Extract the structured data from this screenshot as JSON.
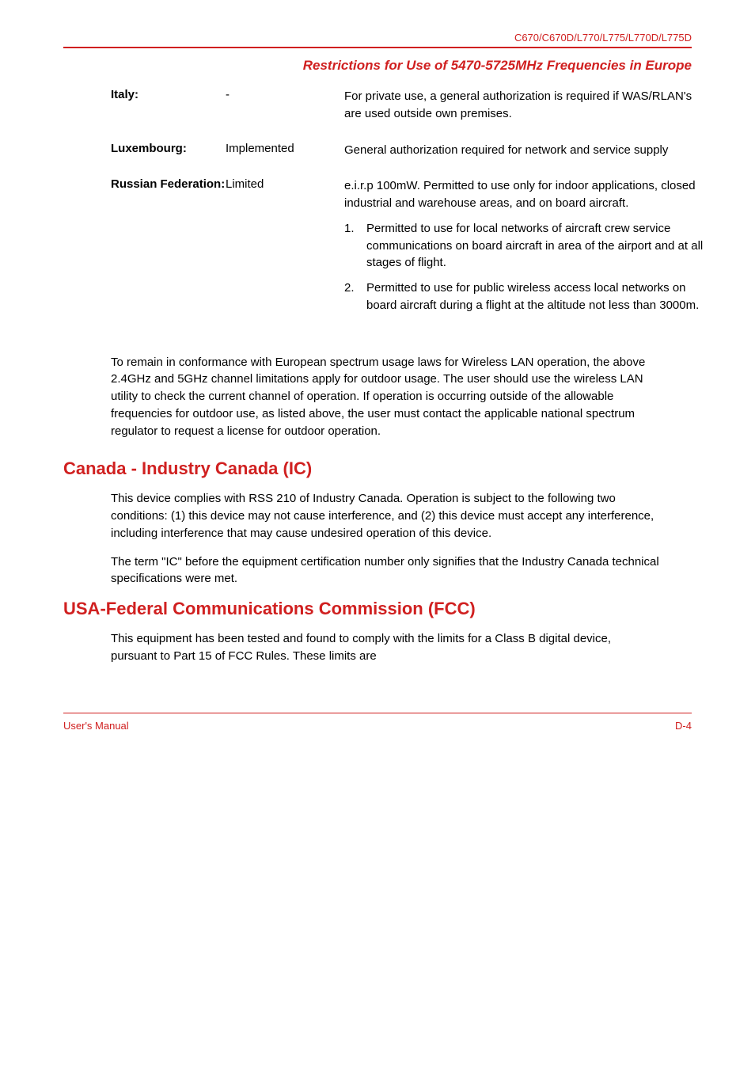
{
  "header": {
    "model": "C670/C670D/L770/L775/L770D/L775D"
  },
  "section_title": "Restrictions for Use of 5470-5725MHz Frequencies in Europe",
  "restrictions": {
    "italy": {
      "country_label": "Italy:",
      "status": "-",
      "description": "For private use, a general authorization is required if WAS/RLAN's are used outside own premises."
    },
    "luxembourg": {
      "country_label": "Luxembourg:",
      "status": "Implemented",
      "description": "General authorization required for network and service supply"
    },
    "russian": {
      "country_label": "Russian Federation:",
      "status": "Limited",
      "description": "e.i.r.p 100mW. Permitted to use only for indoor applications, closed industrial and warehouse areas, and on board aircraft.",
      "list": [
        {
          "num": "1.",
          "text": "Permitted to use for local networks of aircraft crew service communications on board aircraft in area of the airport and at all stages of flight."
        },
        {
          "num": "2.",
          "text": "Permitted to use for public wireless access local networks on board aircraft during a flight at the altitude not less than 3000m."
        }
      ]
    }
  },
  "conformance_paragraph": "To remain in conformance with European spectrum usage laws for Wireless LAN operation, the above 2.4GHz and 5GHz channel limitations apply for outdoor usage. The user should use the wireless LAN utility to check the current channel of operation. If operation is occurring outside of the allowable frequencies for outdoor use, as listed above, the user must contact the applicable national spectrum regulator to request a license for outdoor operation.",
  "canada": {
    "title": "Canada - Industry Canada (IC)",
    "p1": "This device complies with RSS 210 of Industry Canada. Operation is subject to the following two conditions: (1) this device may not cause interference, and (2) this device must accept any interference, including interference that may cause undesired operation of this device.",
    "p2": "The term \"IC\" before the equipment certification number only signifies that the Industry Canada technical specifications were met."
  },
  "fcc": {
    "title": "USA-Federal Communications Commission (FCC)",
    "p1": "This equipment has been tested and found to comply with the limits for a Class B digital device, pursuant to Part 15 of FCC Rules. These limits are"
  },
  "footer": {
    "left": "User's Manual",
    "right": "D-4"
  }
}
